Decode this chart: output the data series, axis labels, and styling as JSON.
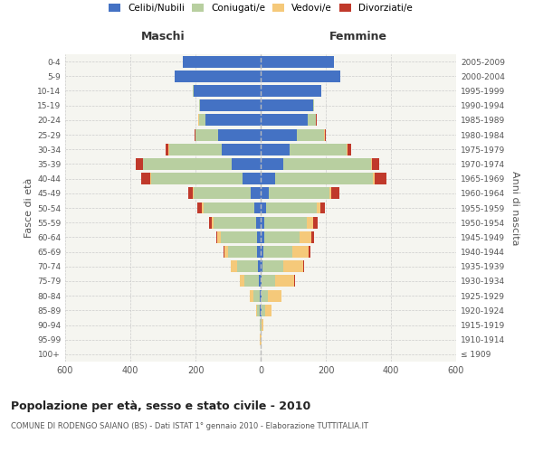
{
  "age_groups": [
    "100+",
    "95-99",
    "90-94",
    "85-89",
    "80-84",
    "75-79",
    "70-74",
    "65-69",
    "60-64",
    "55-59",
    "50-54",
    "45-49",
    "40-44",
    "35-39",
    "30-34",
    "25-29",
    "20-24",
    "15-19",
    "10-14",
    "5-9",
    "0-4"
  ],
  "birth_years": [
    "≤ 1909",
    "1910-1914",
    "1915-1919",
    "1920-1924",
    "1925-1929",
    "1930-1934",
    "1935-1939",
    "1940-1944",
    "1945-1949",
    "1950-1954",
    "1955-1959",
    "1960-1964",
    "1965-1969",
    "1970-1974",
    "1975-1979",
    "1980-1984",
    "1985-1989",
    "1990-1994",
    "1995-1999",
    "2000-2004",
    "2005-2009"
  ],
  "male": {
    "celibi": [
      0,
      0,
      0,
      2,
      3,
      5,
      8,
      10,
      12,
      15,
      20,
      30,
      55,
      90,
      120,
      130,
      170,
      185,
      205,
      265,
      240
    ],
    "coniugati": [
      0,
      1,
      2,
      8,
      20,
      45,
      65,
      90,
      110,
      130,
      155,
      175,
      280,
      270,
      160,
      70,
      20,
      5,
      2,
      0,
      0
    ],
    "vedovi": [
      0,
      1,
      2,
      5,
      10,
      15,
      18,
      12,
      10,
      5,
      5,
      3,
      3,
      2,
      2,
      1,
      1,
      0,
      0,
      0,
      0
    ],
    "divorziati": [
      0,
      0,
      0,
      0,
      0,
      0,
      1,
      2,
      5,
      8,
      15,
      15,
      30,
      20,
      10,
      3,
      2,
      0,
      0,
      0,
      0
    ]
  },
  "female": {
    "nubili": [
      0,
      0,
      1,
      3,
      3,
      4,
      5,
      8,
      10,
      12,
      18,
      25,
      45,
      70,
      90,
      110,
      145,
      160,
      185,
      245,
      225
    ],
    "coniugate": [
      0,
      1,
      3,
      10,
      20,
      40,
      65,
      90,
      110,
      130,
      155,
      185,
      300,
      270,
      175,
      85,
      25,
      5,
      2,
      0,
      0
    ],
    "vedove": [
      0,
      1,
      5,
      20,
      40,
      60,
      60,
      50,
      35,
      20,
      10,
      8,
      5,
      3,
      2,
      1,
      0,
      0,
      0,
      0,
      0
    ],
    "divorziate": [
      0,
      0,
      0,
      1,
      1,
      2,
      3,
      5,
      8,
      12,
      15,
      25,
      35,
      20,
      10,
      5,
      2,
      0,
      0,
      0,
      0
    ]
  },
  "colors": {
    "celibi": "#4472c4",
    "coniugati": "#b8cfa0",
    "vedovi": "#f5c97a",
    "divorziati": "#c0392b"
  },
  "xlim": 600,
  "title": "Popolazione per età, sesso e stato civile - 2010",
  "subtitle": "COMUNE DI RODENGO SAIANO (BS) - Dati ISTAT 1° gennaio 2010 - Elaborazione TUTTITALIA.IT",
  "ylabel_left": "Fasce di età",
  "ylabel_right": "Anni di nascita",
  "xlabel_left": "Maschi",
  "xlabel_right": "Femmine",
  "bg_color": "#ffffff",
  "plot_bg": "#f5f5f0",
  "grid_color": "#cccccc"
}
